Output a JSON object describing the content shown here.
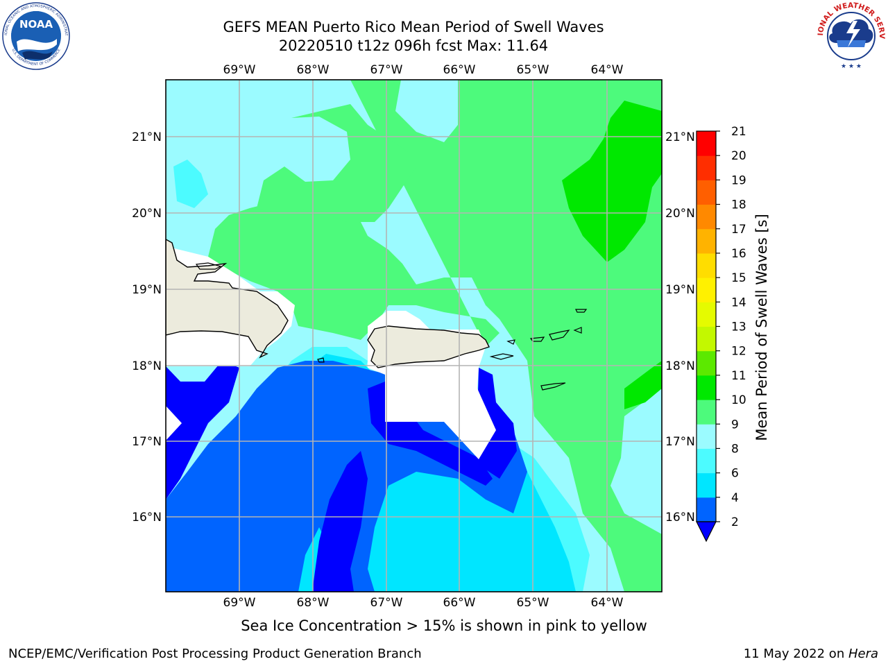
{
  "title": {
    "line1": "GEFS MEAN Puerto Rico Mean Period of Swell Waves",
    "line2": "20220510 t12z 096h fcst   Max: 11.64"
  },
  "logos": {
    "left": "NOAA",
    "left_ring": "NATIONAL OCEANIC AND ATMOSPHERIC ADMINISTRATION",
    "left_ring_bottom": "U.S. DEPARTMENT OF COMMERCE",
    "right_ring": "NATIONAL WEATHER SERVICE"
  },
  "map": {
    "lon_labels": [
      "69°W",
      "68°W",
      "67°W",
      "66°W",
      "65°W",
      "64°W"
    ],
    "lat_labels": [
      "21°N",
      "20°N",
      "19°N",
      "18°N",
      "17°N",
      "16°N"
    ],
    "land_color": "#ecebdd",
    "mask_color": "#ffffff",
    "grid_color": "#b4b4b4"
  },
  "colorbar": {
    "label": "Mean Period of Swell Waves [s]",
    "levels": [
      "2",
      "4",
      "6",
      "8",
      "9",
      "10",
      "11",
      "12",
      "13",
      "14",
      "15",
      "16",
      "17",
      "18",
      "19",
      "20",
      "21"
    ],
    "colors": [
      "#0064ff",
      "#00e6ff",
      "#4cfbff",
      "#9bfbff",
      "#4dfa7c",
      "#00e800",
      "#5ce900",
      "#c3f800",
      "#e5fb00",
      "#fff100",
      "#ffdd00",
      "#ffb300",
      "#ff8900",
      "#ff5f00",
      "#ff2e00",
      "#ff0000"
    ],
    "underflow_color": "#0000ff"
  },
  "sea_ice_note": "Sea Ice Concentration > 15% is shown in pink to yellow",
  "footer": {
    "left": "NCEP/EMC/Verification Post Processing Product Generation Branch",
    "right_prefix": "11 May 2022 on ",
    "right_host": "Hera"
  }
}
